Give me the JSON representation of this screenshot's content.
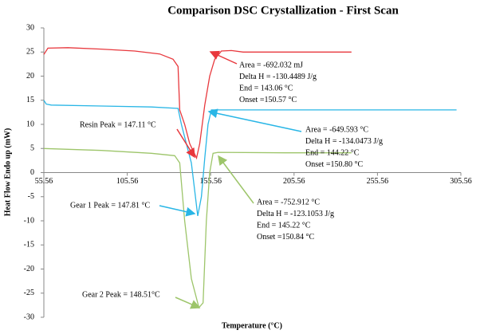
{
  "chart_data": {
    "type": "line",
    "title": "Comparison DSC Crystallization - First Scan",
    "x_label": "Temperature (°C)",
    "y_label": "Heat Flow Endo up (mW)",
    "xlim": [
      55.56,
      305.56
    ],
    "xticks": [
      55.56,
      105.56,
      155.56,
      205.56,
      255.56,
      305.56
    ],
    "ylim": [
      -30,
      30
    ],
    "yticks": [
      -30,
      -25,
      -20,
      -15,
      -10,
      -5,
      0,
      5,
      10,
      15,
      20,
      25,
      30
    ],
    "grid": false,
    "series": [
      {
        "color": "#e8383d",
        "x": [
          55.56,
          58,
          70,
          90,
          110,
          125,
          133,
          136,
          137,
          140,
          143,
          147.11,
          149,
          152,
          155,
          158,
          162,
          168,
          175,
          200,
          240
        ],
        "values": [
          24.5,
          25.8,
          25.9,
          25.6,
          25.2,
          24.6,
          23.5,
          22,
          13,
          10,
          6,
          3,
          6,
          14,
          20,
          23.5,
          25.2,
          25.3,
          25,
          25,
          25
        ]
      },
      {
        "color": "#29b6e6",
        "x": [
          55.56,
          57,
          60,
          90,
          120,
          136,
          138,
          141,
          144,
          147.81,
          150,
          152,
          154,
          156,
          170,
          240,
          303
        ],
        "values": [
          15,
          14.2,
          14,
          13.8,
          13.6,
          13.3,
          10,
          6,
          2,
          -9,
          -5,
          3,
          10,
          13,
          13,
          13,
          13
        ]
      },
      {
        "color": "#9dc56a",
        "x": [
          55.56,
          90,
          120,
          134,
          137,
          140,
          144,
          148.51,
          151,
          153,
          155,
          157,
          160,
          200,
          240
        ],
        "values": [
          5,
          4.6,
          4,
          3.5,
          2,
          -10,
          -22,
          -28,
          -27,
          -10,
          0,
          4,
          4.2,
          4.1,
          4.1
        ]
      }
    ],
    "annotations": [
      {
        "lines": [
          "Area = -692.032 mJ",
          "Delta H = -130.4489 J/g",
          "End = 143.06 °C",
          "Onset =150.57 °C"
        ]
      },
      {
        "lines": [
          "Area = -649.593 °C",
          "Delta H = -134.0473 J/g",
          "End = 144.22 °C",
          "Onset =150.80 °C"
        ]
      },
      {
        "lines": [
          "Area = -752.912 °C",
          "Delta H = -123.1053 J/g",
          "End = 145.22 °C",
          "Onset =150.84 °C"
        ]
      },
      {
        "lines": [
          "Resin Peak = 147.11 °C"
        ]
      },
      {
        "lines": [
          "Gear 1  Peak = 147.81 °C"
        ]
      },
      {
        "lines": [
          "Gear 2 Peak =  148.51°C"
        ]
      }
    ]
  }
}
